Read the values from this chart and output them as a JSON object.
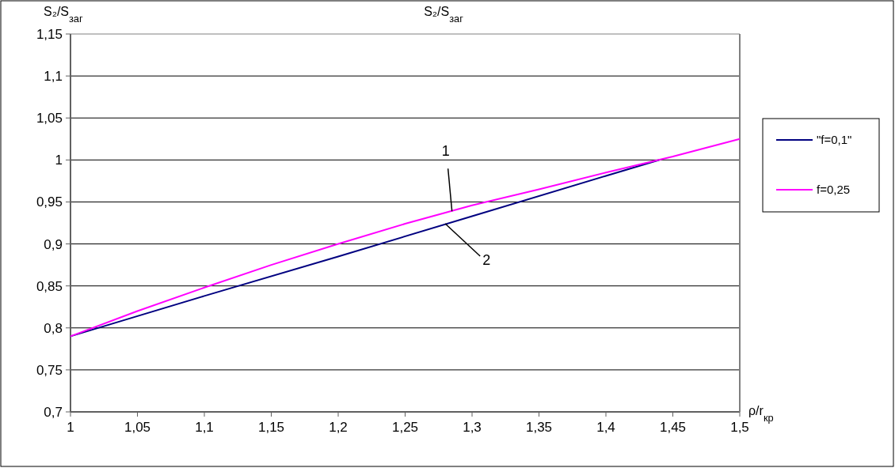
{
  "chart_data": {
    "type": "line",
    "title": "S₂/S$_{заг}$",
    "ylabel": "S₂/S$_{заг}$",
    "xlabel": "ρ/r$_{кр}$",
    "xlim": [
      1,
      1.5
    ],
    "xticks": [
      1,
      {
        "value": 1.05,
        "label": "1,05"
      },
      {
        "value": 1.1,
        "label": "1,1"
      },
      {
        "value": 1.15,
        "label": "1,15"
      },
      {
        "value": 1.2,
        "label": "1,2"
      },
      {
        "value": 1.25,
        "label": "1,25"
      },
      {
        "value": 1.3,
        "label": "1,3"
      },
      {
        "value": 1.35,
        "label": "1,35"
      },
      {
        "value": 1.4,
        "label": "1,4"
      },
      {
        "value": 1.45,
        "label": "1,45"
      },
      {
        "value": 1.5,
        "label": "1,5"
      }
    ],
    "ylim": [
      0.7,
      1.15
    ],
    "yticks": [
      {
        "value": 0.7,
        "label": "0,7"
      },
      {
        "value": 0.75,
        "label": "0,75"
      },
      {
        "value": 0.8,
        "label": "0,8"
      },
      {
        "value": 0.85,
        "label": "0,85"
      },
      {
        "value": 0.9,
        "label": "0,9"
      },
      {
        "value": 0.95,
        "label": "0,95"
      },
      1,
      {
        "value": 1.05,
        "label": "1,05"
      },
      {
        "value": 1.1,
        "label": "1,1"
      },
      {
        "value": 1.15,
        "label": "1,15"
      }
    ],
    "grid": "y",
    "legend": "right",
    "marker": "none",
    "line_style": "solid",
    "series": [
      {
        "name": "\"f=0,1\"",
        "color": "#000080",
        "x": [
          1,
          1.1,
          1.2,
          1.3,
          1.4,
          1.44
        ],
        "values": [
          0.79,
          0.838,
          0.885,
          0.933,
          0.981,
          1.0
        ]
      },
      {
        "name": "f=0,25",
        "color": "#ff00ff",
        "x": [
          1,
          1.05,
          1.1,
          1.15,
          1.2,
          1.25,
          1.3,
          1.35,
          1.4,
          1.45,
          1.5
        ],
        "values": [
          0.79,
          0.82,
          0.848,
          0.875,
          0.9,
          0.924,
          0.946,
          0.965,
          0.985,
          1.004,
          1.025
        ]
      }
    ],
    "annotations": [
      {
        "text": "1",
        "x": 1.285,
        "y": 0.937
      },
      {
        "text": "2",
        "x": 1.28,
        "y": 0.924
      }
    ]
  }
}
